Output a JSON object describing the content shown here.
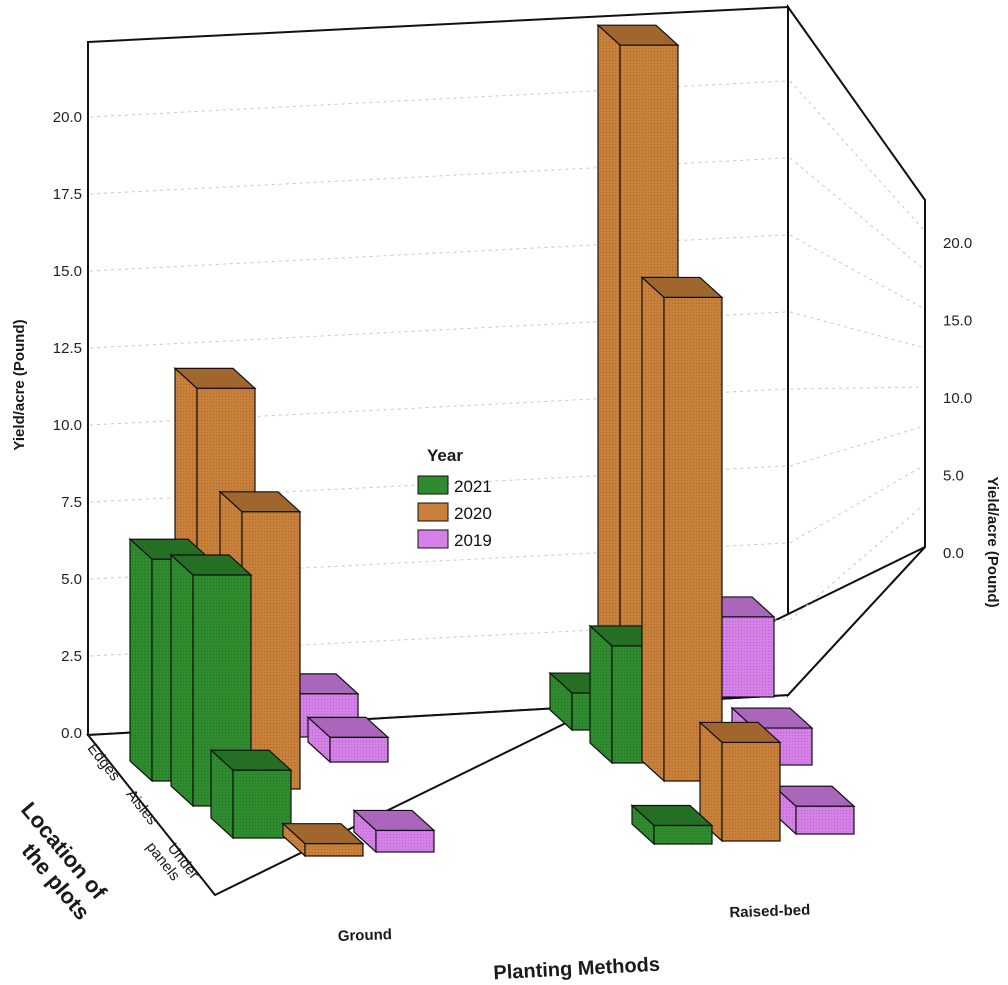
{
  "chart_data": {
    "type": "bar",
    "subtype": "3d-clustered",
    "xlabel": "Planting Methods",
    "zlabel": "Location of the plots",
    "ylabel": "Yield/acre (Pound)",
    "ylabel_right": "Yield/acre (Pound)",
    "categories": [
      "Ground",
      "Raised-bed"
    ],
    "locations": [
      "Edges",
      "Aisles",
      "Under panels"
    ],
    "ylim": [
      0,
      22
    ],
    "yticks_left": [
      "0.0",
      "2.5",
      "5.0",
      "7.5",
      "10.0",
      "12.5",
      "15.0",
      "17.5",
      "20.0"
    ],
    "yticks_right": [
      "0.0",
      "5.0",
      "10.0",
      "15.0",
      "20.0"
    ],
    "grid": true,
    "legend": {
      "title": "Year",
      "placement": "center"
    },
    "series": [
      {
        "name": "2021",
        "color": "#2e8b2e",
        "values": {
          "Ground": [
            7.2,
            7.5,
            2.2
          ],
          "Raised-bed": [
            1.2,
            3.8,
            0.6
          ]
        }
      },
      {
        "name": "2020",
        "color": "#c8803a",
        "values": {
          "Ground": [
            12.0,
            9.0,
            0.4
          ],
          "Raised-bed": [
            21.0,
            15.7,
            3.2
          ]
        }
      },
      {
        "name": "2019",
        "color": "#d580e8",
        "values": {
          "Ground": [
            1.4,
            0.8,
            0.7
          ],
          "Raised-bed": [
            2.6,
            1.2,
            0.9
          ]
        }
      }
    ]
  }
}
